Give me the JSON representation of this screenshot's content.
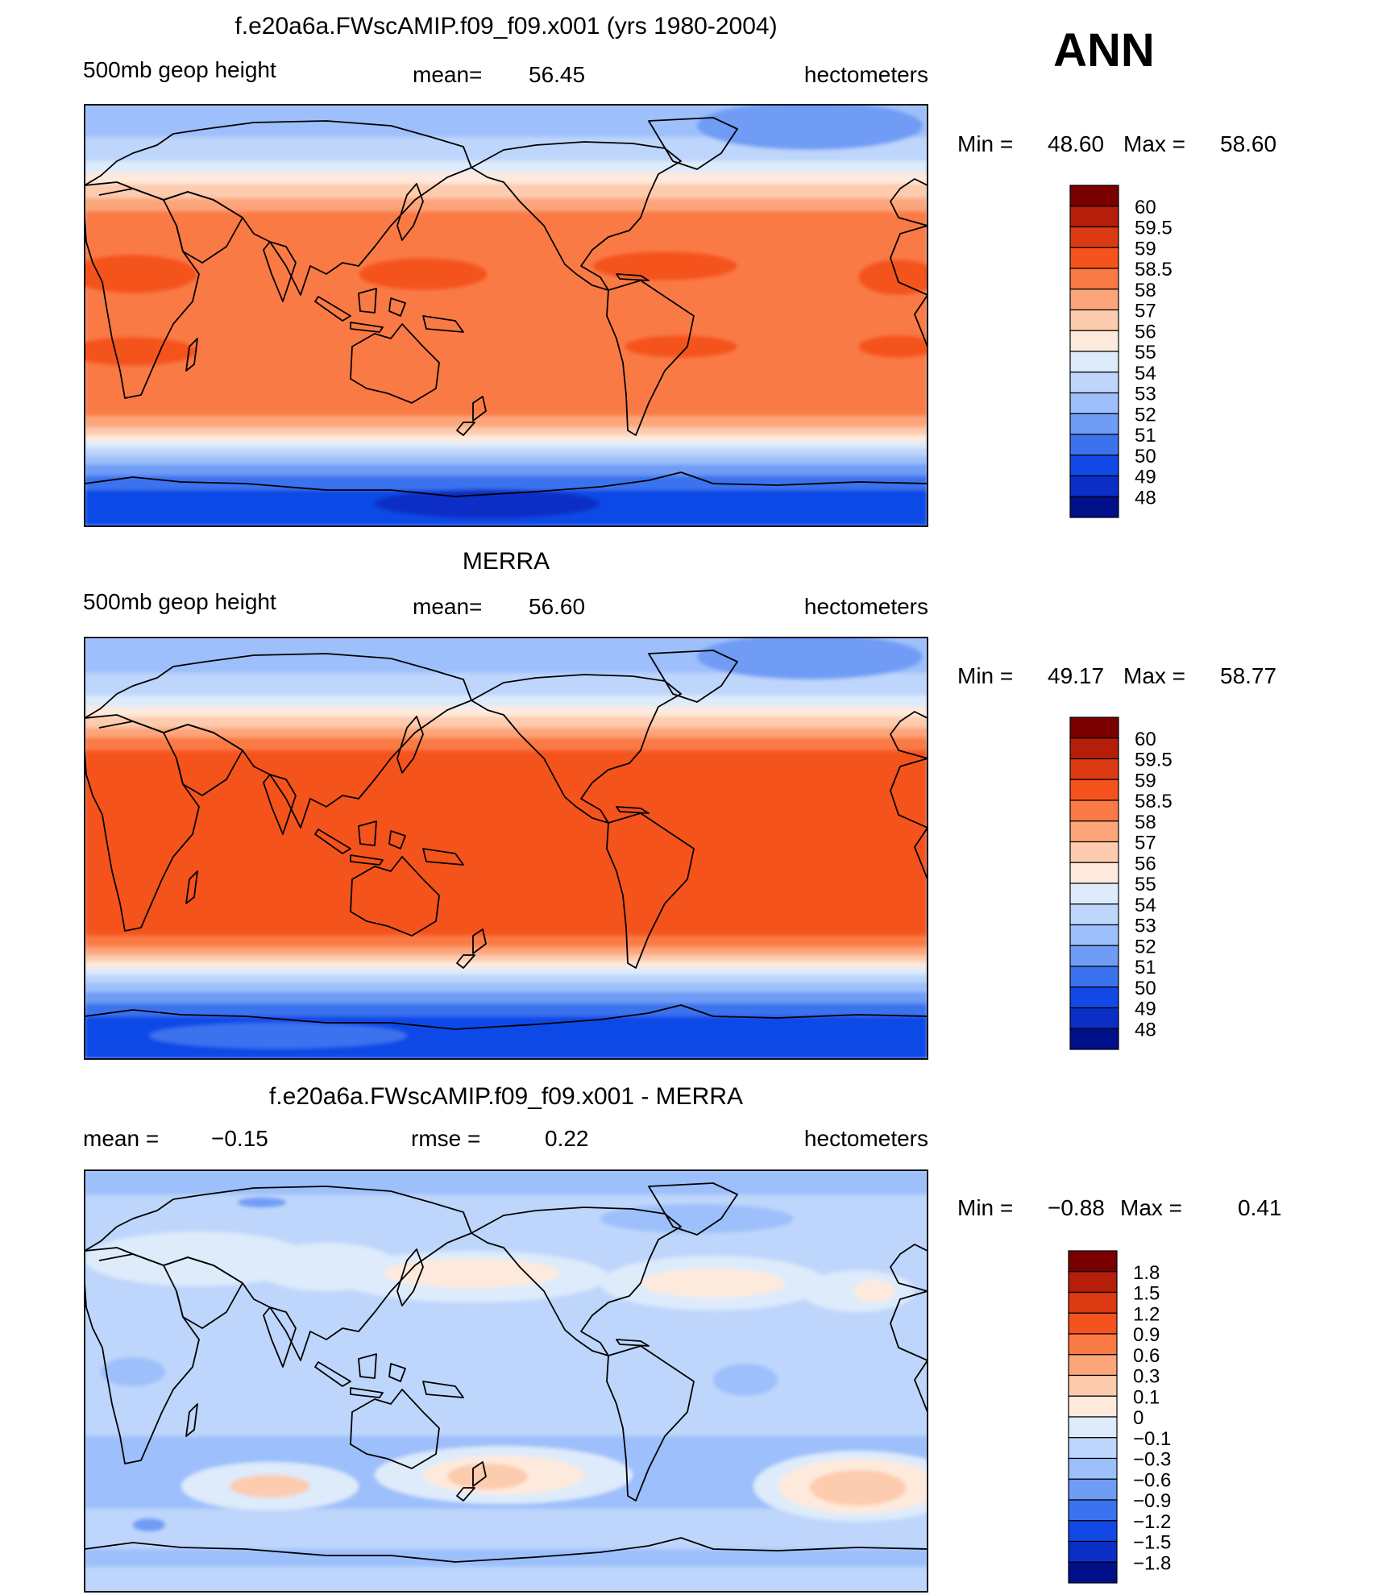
{
  "season": "ANN",
  "panels": [
    {
      "title": "f.e20a6a.FWscAMIP.f09_f09.x001 (yrs 1980-2004)",
      "left_label": "500mb geop height",
      "center_label": "mean=",
      "center_value": "56.45",
      "right_label": "hectometers",
      "stats": {
        "min_label": "Min =",
        "min": "48.60",
        "max_label": "Max =",
        "max": "58.60"
      },
      "legend": {
        "levels": [
          "60",
          "59.5",
          "59",
          "58.5",
          "58",
          "57",
          "56",
          "55",
          "54",
          "53",
          "52",
          "51",
          "50",
          "49",
          "48"
        ],
        "colors": [
          "#7a0000",
          "#b51e0a",
          "#dc3a12",
          "#f5531d",
          "#fa7a45",
          "#fca57a",
          "#fdcbae",
          "#feeadc",
          "#ddebfb",
          "#bed6fb",
          "#9dbffb",
          "#6f9cf5",
          "#3b72ee",
          "#1148e6",
          "#0a2ec6",
          "#000f8a"
        ]
      }
    },
    {
      "title": "MERRA",
      "left_label": "500mb geop height",
      "center_label": "mean=",
      "center_value": "56.60",
      "right_label": "hectometers",
      "stats": {
        "min_label": "Min =",
        "min": "49.17",
        "max_label": "Max =",
        "max": "58.77"
      },
      "legend": {
        "levels": [
          "60",
          "59.5",
          "59",
          "58.5",
          "58",
          "57",
          "56",
          "55",
          "54",
          "53",
          "52",
          "51",
          "50",
          "49",
          "48"
        ],
        "colors": [
          "#7a0000",
          "#b51e0a",
          "#dc3a12",
          "#f5531d",
          "#fa7a45",
          "#fca57a",
          "#fdcbae",
          "#feeadc",
          "#ddebfb",
          "#bed6fb",
          "#9dbffb",
          "#6f9cf5",
          "#3b72ee",
          "#1148e6",
          "#0a2ec6",
          "#000f8a"
        ]
      }
    },
    {
      "title": "f.e20a6a.FWscAMIP.f09_f09.x001 - MERRA",
      "left_label": "mean =",
      "left_value": "−0.15",
      "center_label": "rmse =",
      "center_value": "0.22",
      "right_label": "hectometers",
      "stats": {
        "min_label": "Min =",
        "min": "−0.88",
        "max_label": "Max =",
        "max": "0.41"
      },
      "legend": {
        "levels": [
          "1.8",
          "1.5",
          "1.2",
          "0.9",
          "0.6",
          "0.3",
          "0.1",
          "0",
          "−0.1",
          "−0.3",
          "−0.6",
          "−0.9",
          "−1.2",
          "−1.5",
          "−1.8"
        ],
        "colors": [
          "#7a0000",
          "#b51e0a",
          "#dc3a12",
          "#f5531d",
          "#fa7a45",
          "#fca57a",
          "#fdcbae",
          "#feeadc",
          "#ddebfb",
          "#bed6fb",
          "#9dbffb",
          "#6f9cf5",
          "#3b72ee",
          "#1148e6",
          "#0a2ec6",
          "#000f8a"
        ]
      }
    }
  ]
}
